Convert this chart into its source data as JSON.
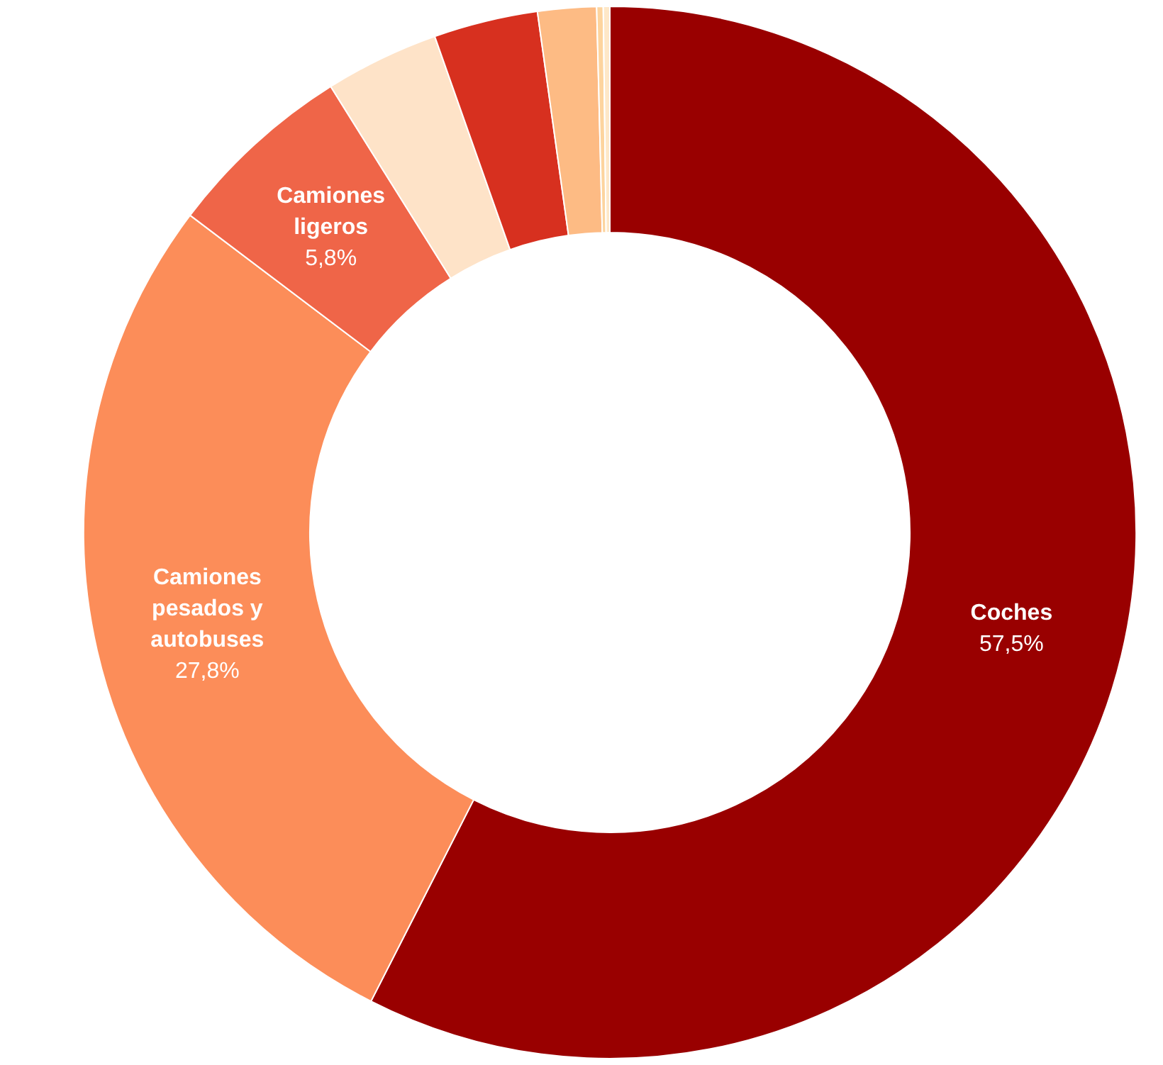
{
  "chart_data": {
    "type": "donut",
    "categories": [
      "Coches",
      "Camiones pesados y autobuses",
      "Camiones ligeros",
      null,
      null,
      null,
      null,
      null
    ],
    "values": [
      57.5,
      27.8,
      5.8,
      3.5,
      3.2,
      1.8,
      0.2,
      0.2
    ],
    "colors": [
      "#990000",
      "#fc8d59",
      "#ef6548",
      "#fee3c8",
      "#d7301f",
      "#fdbb84",
      "#fdd49e",
      "#fee8c8"
    ],
    "value_labels": [
      "57,5%",
      "27,8%",
      "5,8%",
      null,
      null,
      null,
      null,
      null
    ],
    "legend": false
  }
}
